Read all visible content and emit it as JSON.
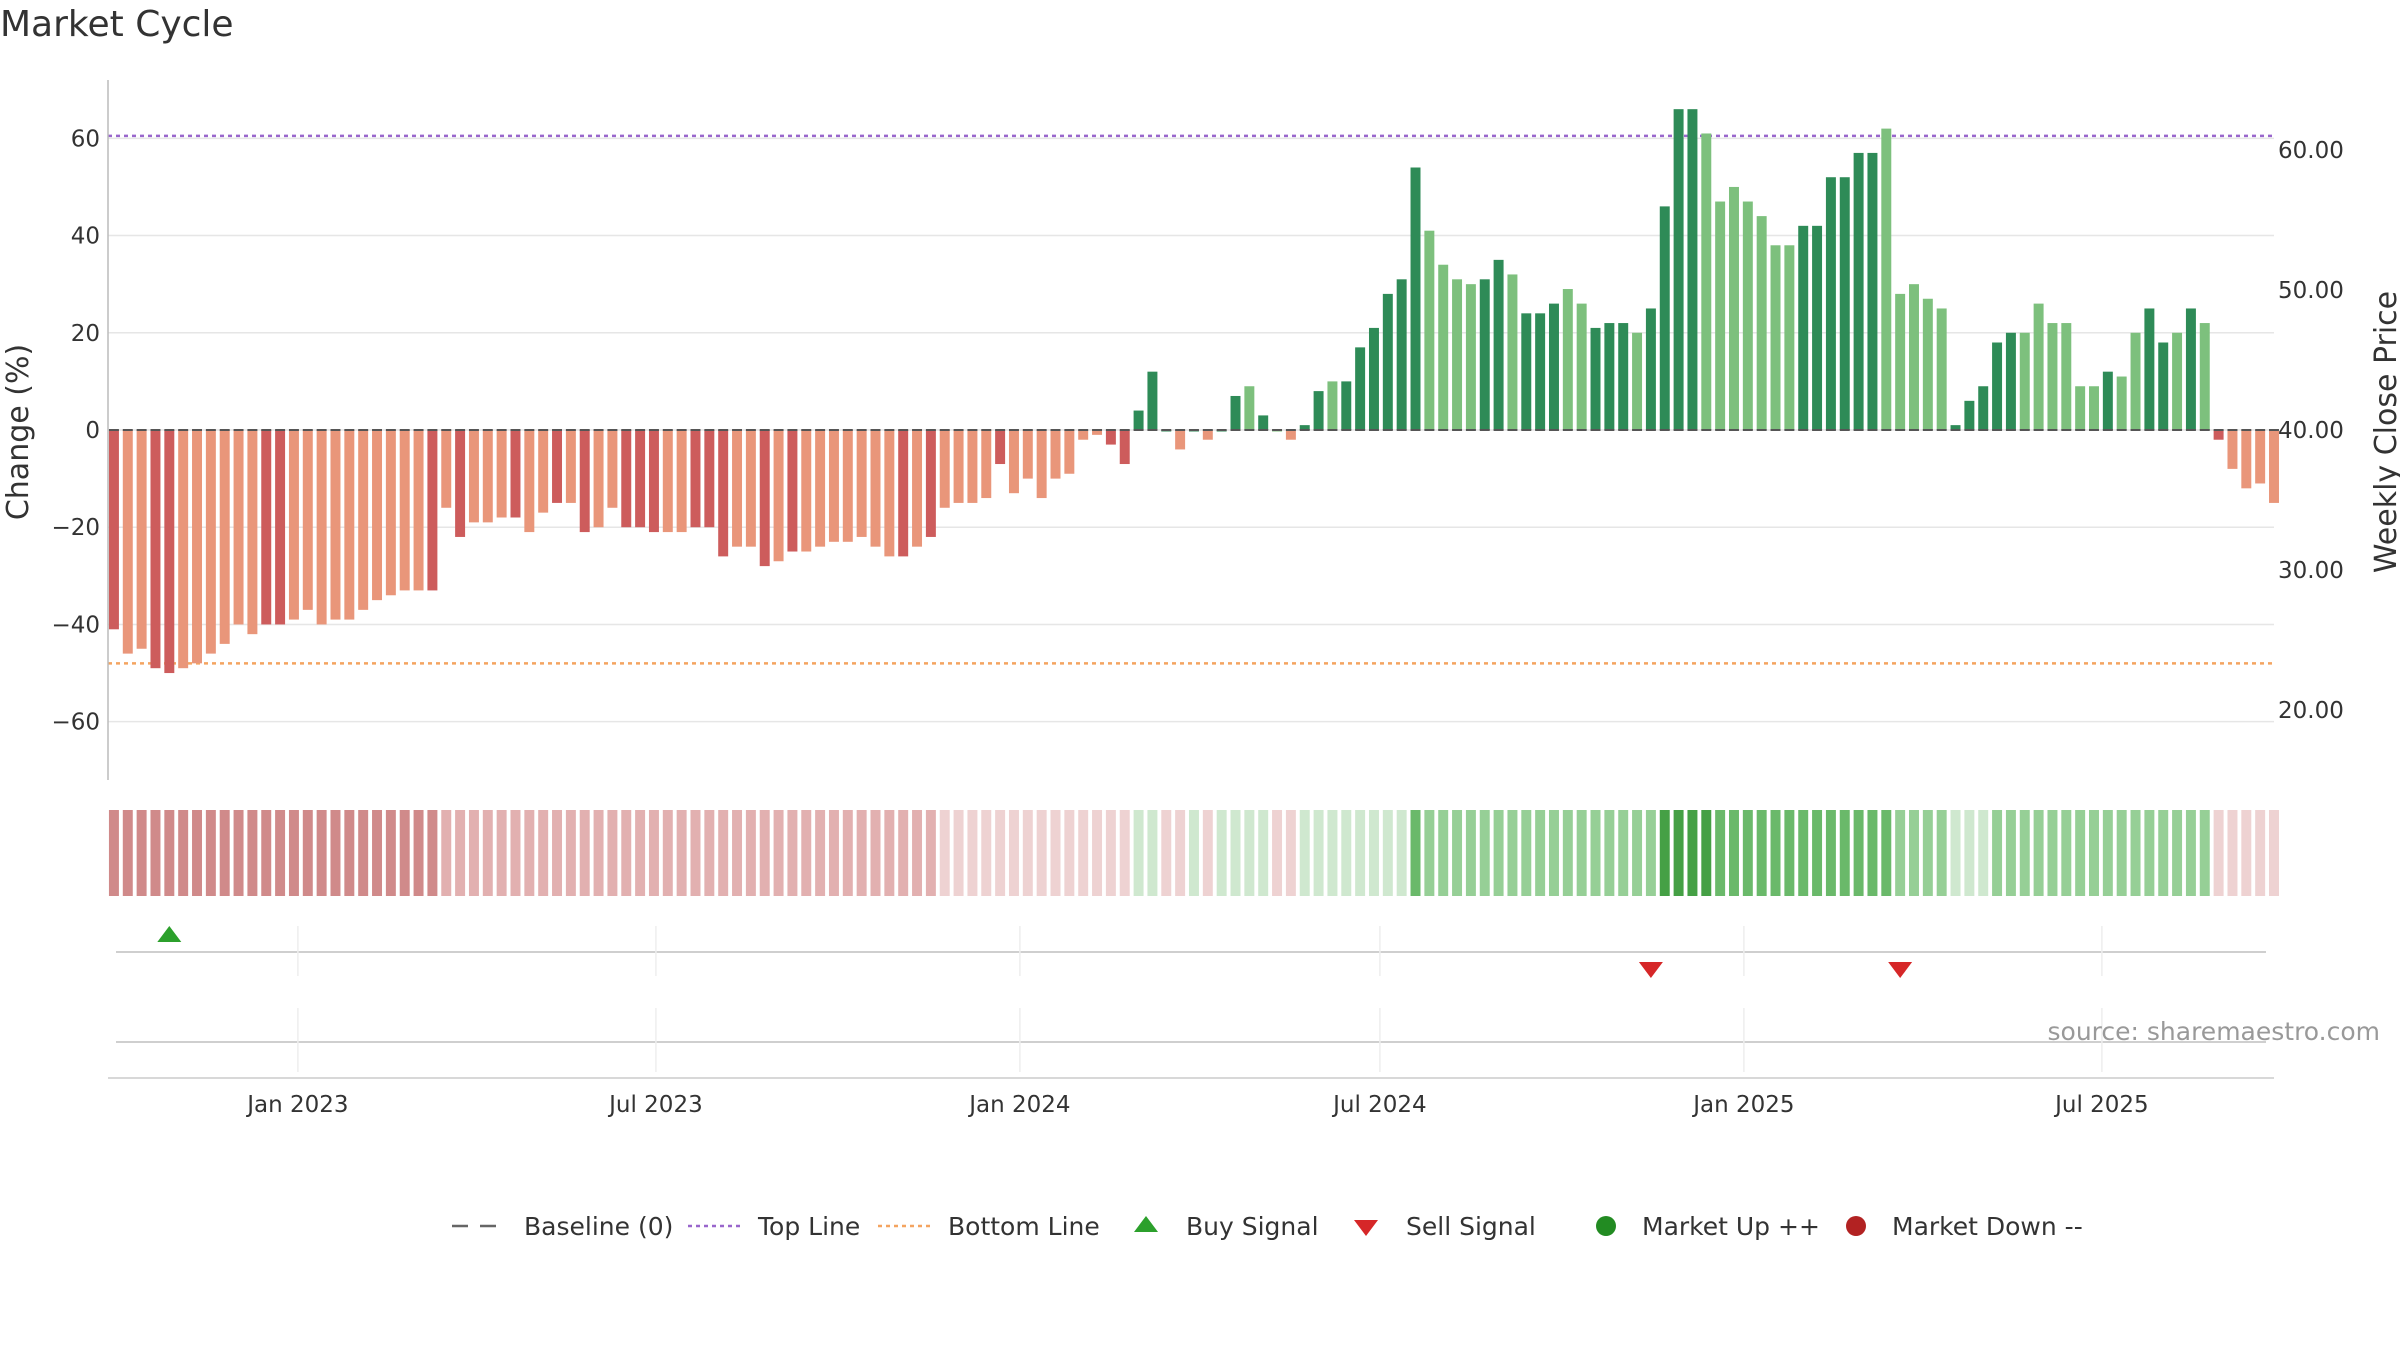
{
  "chart_data": {
    "type": "bar",
    "title": "Market Cycle",
    "ylabel": "Change (%)",
    "y2label": "Weekly Close Price",
    "ylim": [
      -72,
      72
    ],
    "y2lim": [
      15.0,
      65.0
    ],
    "yticks": [
      60,
      40,
      20,
      0,
      -20,
      -40,
      -60
    ],
    "ytick_labels": [
      "60",
      "40",
      "20",
      "0",
      "−20",
      "−40",
      "−60"
    ],
    "y2ticks": [
      60.0,
      50.0,
      40.0,
      30.0,
      20.0
    ],
    "y2tick_labels": [
      "60.00",
      "50.00",
      "40.00",
      "30.00",
      "20.00"
    ],
    "xlim": [
      "2022-09-27",
      "2025-09-26"
    ],
    "xticks": [
      "2023-01-01",
      "2023-07-01",
      "2024-01-01",
      "2024-07-01",
      "2025-01-01",
      "2025-07-01"
    ],
    "xtick_labels": [
      "Jan 2023",
      "Jul 2023",
      "Jan 2024",
      "Jul 2024",
      "Jan 2025",
      "Jul 2025"
    ],
    "start_date": "2022-09-30",
    "week_step_days": 7,
    "top_line": 60.5,
    "bottom_line": -48,
    "values": [
      -41,
      -46,
      -45,
      -49,
      -50,
      -49,
      -48,
      -46,
      -44,
      -40,
      -42,
      -40,
      -40,
      -39,
      -37,
      -40,
      -39,
      -39,
      -37,
      -35,
      -34,
      -33,
      -33,
      -33,
      -16,
      -22,
      -19,
      -19,
      -18,
      -18,
      -21,
      -17,
      -15,
      -15,
      -21,
      -20,
      -16,
      -20,
      -20,
      -21,
      -21,
      -21,
      -20,
      -20,
      -26,
      -24,
      -24,
      -28,
      -27,
      -25,
      -25,
      -24,
      -23,
      -23,
      -22,
      -24,
      -26,
      -26,
      -24,
      -22,
      -16,
      -15,
      -15,
      -14,
      -7,
      -13,
      -10,
      -14,
      -10,
      -9,
      -2,
      -1,
      -3,
      -7,
      4,
      12,
      0,
      -4,
      0,
      -2,
      0,
      7,
      9,
      3,
      0,
      -2,
      1,
      8,
      10,
      10,
      17,
      21,
      28,
      31,
      54,
      41,
      34,
      31,
      30,
      31,
      35,
      32,
      24,
      24,
      26,
      29,
      26,
      21,
      22,
      22,
      20,
      25,
      46,
      66,
      66,
      61,
      47,
      50,
      47,
      44,
      38,
      38,
      42,
      42,
      52,
      52,
      57,
      57,
      62,
      28,
      30,
      27,
      25,
      1,
      6,
      9,
      18,
      20,
      20,
      26,
      22,
      22,
      9,
      9,
      12,
      11,
      20,
      25,
      18,
      20,
      25,
      22,
      -2,
      -8,
      -12,
      -11,
      -15
    ],
    "bar_shades": "DLLDDLLLLLLDDLLLLLLLLLLDLDLLLDLLDLDLLDDDLLDDDLLDLDLLLLLLLDLDLLLLDLLLLLLLDDDDDLDLDDLDLLDDLDDDDDDLLLLDDLDDDLLDDDLDDDDLLLLLLLDDDDDDLLLLLDDDDDLLLLLLDLLDDLDLDLLLL",
    "heat_values": [
      -3,
      -3,
      -3,
      -3,
      -3,
      -3,
      -3,
      -3,
      -3,
      -3,
      -3,
      -3,
      -3,
      -3,
      -3,
      -3,
      -3,
      -3,
      -3,
      -3,
      -3,
      -3,
      -3,
      -3,
      -2,
      -2,
      -2,
      -2,
      -2,
      -2,
      -2,
      -2,
      -2,
      -2,
      -2,
      -2,
      -2,
      -2,
      -2,
      -2,
      -2,
      -2,
      -2,
      -2,
      -2,
      -2,
      -2,
      -2,
      -2,
      -2,
      -2,
      -2,
      -2,
      -2,
      -2,
      -2,
      -2,
      -2,
      -2,
      -2,
      -1,
      -1,
      -1,
      -1,
      -1,
      -1,
      -1,
      -1,
      -1,
      -1,
      -1,
      -1,
      -1,
      -1,
      1,
      1,
      -1,
      -1,
      1,
      -1,
      1,
      1,
      1,
      1,
      -1,
      -1,
      1,
      1,
      1,
      1,
      1,
      1,
      1,
      1,
      3,
      2,
      2,
      2,
      2,
      2,
      2,
      2,
      2,
      2,
      2,
      2,
      2,
      2,
      2,
      2,
      2,
      2,
      4,
      4,
      4,
      4,
      3,
      3,
      3,
      3,
      3,
      3,
      3,
      3,
      3,
      3,
      3,
      3,
      3,
      2,
      2,
      2,
      2,
      1,
      1,
      1,
      2,
      2,
      2,
      2,
      2,
      2,
      2,
      2,
      2,
      2,
      2,
      2,
      2,
      2,
      2,
      2,
      -1,
      -1,
      -1,
      -1,
      -1
    ],
    "buy_signals": [
      "2022-10-28"
    ],
    "sell_signals": [
      "2024-11-15",
      "2025-03-21"
    ],
    "colors": {
      "down_dark": "#cd5c5c",
      "down_light": "#e9967a",
      "up_dark": "#2e8b57",
      "up_light": "#8fbc8f",
      "up_lighter": "#7dc07d",
      "top_line": "#9966cc",
      "bottom_line": "#f4a460",
      "baseline": "#555555",
      "buy": "#2ca02c",
      "sell": "#d62728",
      "market_up": "#228b22",
      "market_down": "#b22222"
    },
    "legend": [
      {
        "label": "Baseline (0)",
        "symbol": "dash"
      },
      {
        "label": "Top Line",
        "symbol": "dot-purple"
      },
      {
        "label": "Bottom Line",
        "symbol": "dot-orange"
      },
      {
        "label": "Buy Signal",
        "symbol": "triangle-up"
      },
      {
        "label": "Sell Signal",
        "symbol": "triangle-down"
      },
      {
        "label": "Market Up ++",
        "symbol": "circle-green"
      },
      {
        "label": "Market Down --",
        "symbol": "circle-red"
      }
    ],
    "legend_position": "bottom-center",
    "source": "source: sharemaestro.com",
    "grid": true
  }
}
